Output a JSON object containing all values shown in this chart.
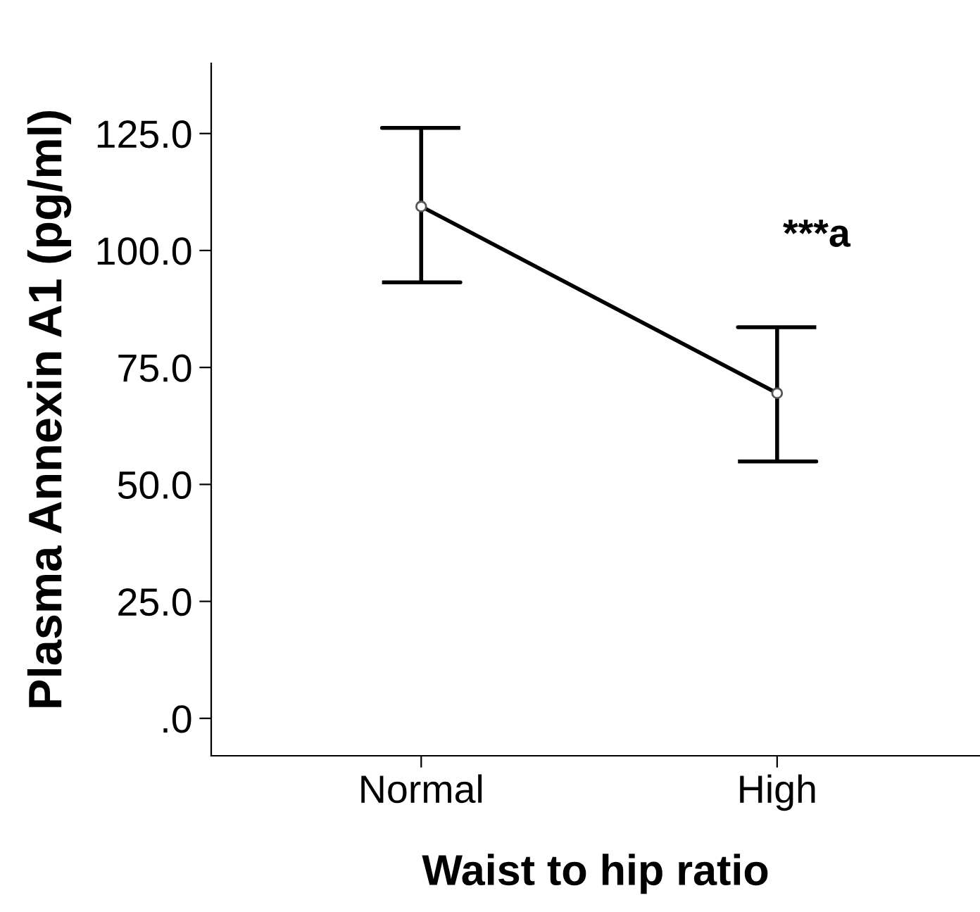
{
  "chart_data": {
    "type": "line",
    "xlabel": "Waist to hip ratio",
    "ylabel": "Plasma Annexin A1 (pg/ml)",
    "categories": [
      "Normal",
      "High"
    ],
    "color": "#000000",
    "values": [
      109.4,
      69.5
    ],
    "errors": [
      [
        93.2,
        126.2
      ],
      [
        54.9,
        83.6
      ]
    ],
    "ylim": [
      -8,
      140
    ],
    "yticks": [
      {
        "value": 0,
        "label": ".0"
      },
      {
        "value": 25,
        "label": "25.0"
      },
      {
        "value": 50,
        "label": "50.0"
      },
      {
        "value": 75,
        "label": "75.0"
      },
      {
        "value": 100,
        "label": "100.0"
      },
      {
        "value": 125,
        "label": "125.0"
      }
    ],
    "annotations": [
      "***a"
    ],
    "marker": "circle",
    "line_style": "solid",
    "grid": false,
    "legend": false
  }
}
